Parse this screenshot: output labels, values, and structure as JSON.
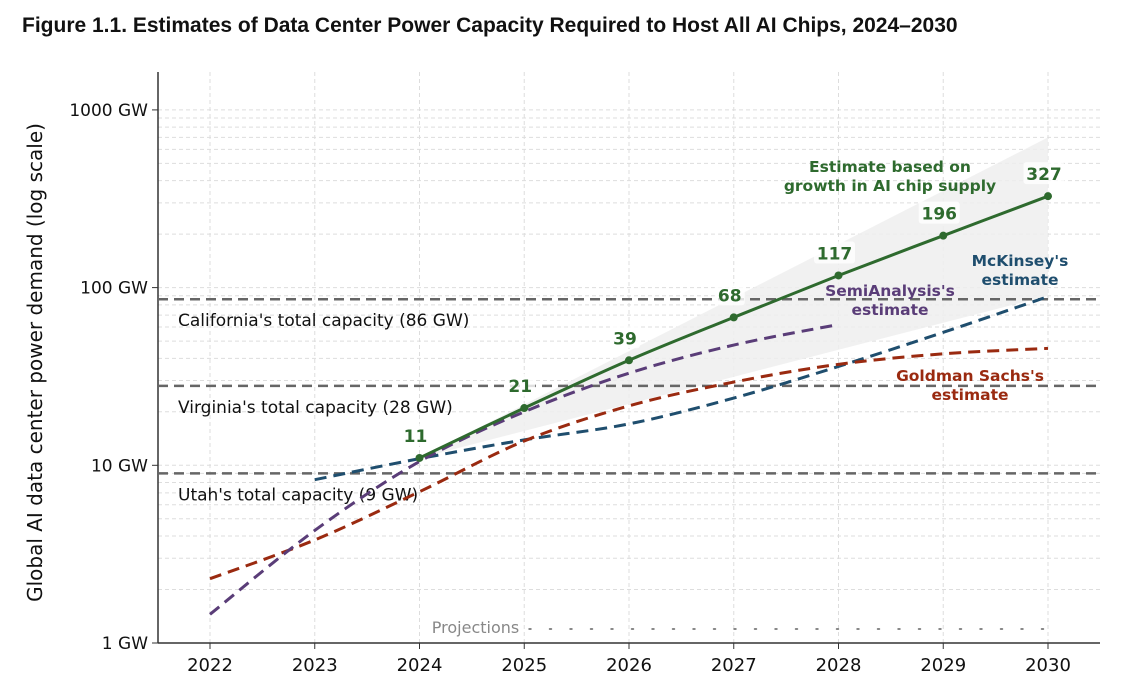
{
  "title": "Figure 1.1. Estimates of Data Center Power Capacity Required to Host All AI Chips, 2024–2030",
  "chart_data": {
    "type": "line",
    "ylabel": "Global AI data center power demand (log scale)",
    "xlabel": "",
    "y_scale": "log",
    "ylim": [
      1,
      1000
    ],
    "xlim": [
      2021.5,
      2030.5
    ],
    "x_ticks": [
      2022,
      2023,
      2024,
      2025,
      2026,
      2027,
      2028,
      2029,
      2030
    ],
    "y_ticks": [
      {
        "value": 1,
        "label": "1 GW"
      },
      {
        "value": 10,
        "label": "10 GW"
      },
      {
        "value": 100,
        "label": "100 GW"
      },
      {
        "value": 1000,
        "label": "1000 GW"
      }
    ],
    "grid": true,
    "reference_lines": [
      {
        "value": 86,
        "label": "California's total capacity (86 GW)"
      },
      {
        "value": 28,
        "label": "Virginia's total capacity (28 GW)"
      },
      {
        "value": 9,
        "label": "Utah's total capacity (9 GW)"
      }
    ],
    "projections_label": "Projections",
    "projections_start": 2025,
    "series": [
      {
        "name": "Estimate based on growth in AI chip supply",
        "color": "#2e6a2e",
        "style": "solid",
        "markers": true,
        "x": [
          2024,
          2025,
          2026,
          2027,
          2028,
          2029,
          2030
        ],
        "y": [
          11,
          21,
          39,
          68,
          117,
          196,
          327
        ],
        "labels": [
          "11",
          "21",
          "39",
          "68",
          "117",
          "196",
          "327"
        ],
        "band": {
          "x": [
            2024,
            2030
          ],
          "lower": [
            11,
            90
          ],
          "upper": [
            11,
            700
          ]
        }
      },
      {
        "name": "SemiAnalysis's estimate",
        "color": "#5a3d78",
        "style": "dashed",
        "x": [
          2022,
          2023,
          2024,
          2025,
          2026,
          2027,
          2028
        ],
        "y": [
          1.45,
          4.3,
          10.5,
          20,
          33,
          47.5,
          62
        ]
      },
      {
        "name": "Goldman Sachs's estimate",
        "color": "#9a2a10",
        "style": "dashed",
        "x": [
          2022,
          2023,
          2024,
          2025,
          2026,
          2027,
          2028,
          2029,
          2030
        ],
        "y": [
          2.3,
          3.8,
          7.1,
          13.7,
          21.6,
          29.4,
          37,
          42.4,
          45.5
        ]
      },
      {
        "name": "McKinsey's estimate",
        "color": "#1f4e6e",
        "style": "dashed",
        "x": [
          2023,
          2024,
          2025,
          2026,
          2027,
          2028,
          2029,
          2030
        ],
        "y": [
          8.3,
          10.9,
          13.9,
          17.1,
          23.9,
          36,
          56,
          89
        ]
      }
    ],
    "annotations": [
      {
        "series": 0,
        "lines": [
          "Estimate based on",
          "growth in AI chip supply"
        ]
      },
      {
        "series": 1,
        "lines": [
          "SemiAnalysis's",
          "estimate"
        ]
      },
      {
        "series": 2,
        "lines": [
          "Goldman Sachs's",
          "estimate"
        ]
      },
      {
        "series": 3,
        "lines": [
          "McKinsey's",
          "estimate"
        ]
      }
    ]
  }
}
